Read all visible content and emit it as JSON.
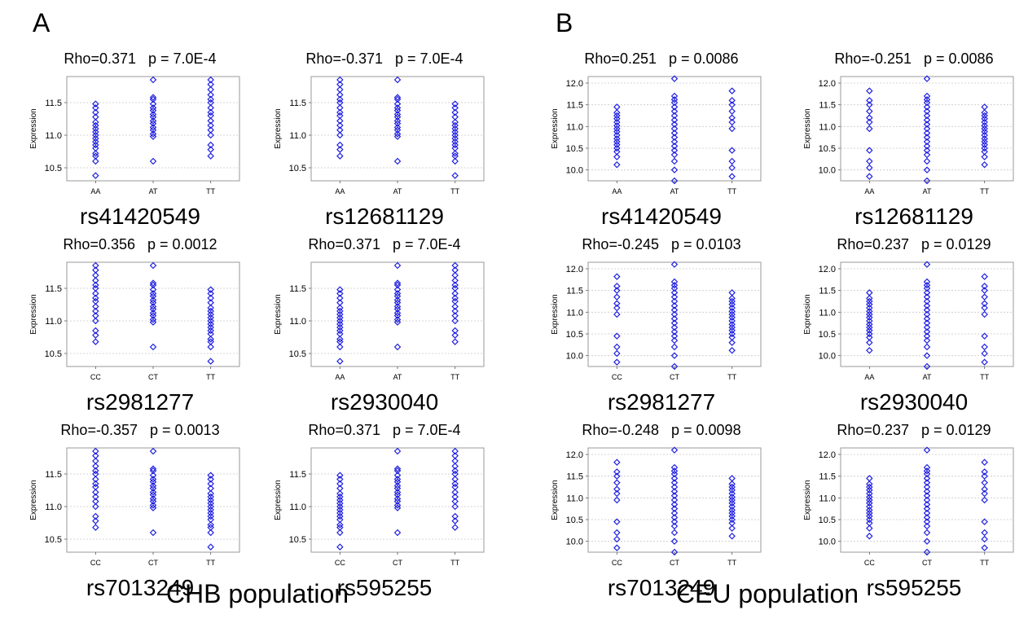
{
  "panels": [
    {
      "letter": "A",
      "population_label": "CHB population"
    },
    {
      "letter": "B",
      "population_label": "CEU population"
    }
  ],
  "colors": {
    "marker": "#2020e0",
    "grid": "#c8c8c8",
    "frame": "#9a9a9a"
  },
  "chart_data": [
    {
      "type": "scatter",
      "panel": "A",
      "title": "Rho=0.371   p = 7.0E-4",
      "snp": "rs41420549",
      "ylabel": "Expression",
      "categories": [
        "AA",
        "AT",
        "TT"
      ],
      "yticks": [
        10.5,
        11.0,
        11.5
      ],
      "ylim": [
        10.3,
        11.9
      ],
      "series": [
        {
          "category": "AA",
          "y": [
            10.38,
            10.6,
            10.68,
            10.72,
            10.8,
            10.85,
            10.9,
            10.95,
            11.0,
            11.05,
            11.1,
            11.15,
            11.2,
            11.28,
            11.35,
            11.42,
            11.48
          ]
        },
        {
          "category": "AT",
          "y": [
            10.6,
            10.98,
            11.02,
            11.08,
            11.12,
            11.18,
            11.22,
            11.28,
            11.32,
            11.38,
            11.42,
            11.48,
            11.55,
            11.58,
            11.85
          ]
        },
        {
          "category": "TT",
          "y": [
            10.68,
            10.78,
            10.85,
            11.0,
            11.08,
            11.15,
            11.22,
            11.3,
            11.35,
            11.42,
            11.5,
            11.55,
            11.62,
            11.7,
            11.78,
            11.85
          ]
        }
      ]
    },
    {
      "type": "scatter",
      "panel": "A",
      "title": "Rho=-0.371   p = 7.0E-4",
      "snp": "rs12681129",
      "ylabel": "Expression",
      "categories": [
        "AA",
        "AT",
        "TT"
      ],
      "yticks": [
        10.5,
        11.0,
        11.5
      ],
      "ylim": [
        10.3,
        11.9
      ],
      "series": [
        {
          "category": "AA",
          "y": [
            10.68,
            10.78,
            10.85,
            11.0,
            11.08,
            11.15,
            11.22,
            11.3,
            11.35,
            11.42,
            11.5,
            11.55,
            11.62,
            11.7,
            11.78,
            11.85
          ]
        },
        {
          "category": "AT",
          "y": [
            10.6,
            10.98,
            11.02,
            11.08,
            11.12,
            11.18,
            11.22,
            11.28,
            11.32,
            11.38,
            11.42,
            11.48,
            11.55,
            11.58,
            11.85
          ]
        },
        {
          "category": "TT",
          "y": [
            10.38,
            10.6,
            10.68,
            10.72,
            10.8,
            10.85,
            10.9,
            10.95,
            11.0,
            11.05,
            11.1,
            11.15,
            11.2,
            11.28,
            11.35,
            11.42,
            11.48
          ]
        }
      ]
    },
    {
      "type": "scatter",
      "panel": "B",
      "title": "Rho=0.251   p = 0.0086",
      "snp": "rs41420549",
      "ylabel": "Expression",
      "categories": [
        "AA",
        "AT",
        "TT"
      ],
      "yticks": [
        10.0,
        10.5,
        11.0,
        11.5,
        12.0
      ],
      "ylim": [
        9.75,
        12.15
      ],
      "series": [
        {
          "category": "AA",
          "y": [
            10.12,
            10.3,
            10.42,
            10.5,
            10.58,
            10.65,
            10.72,
            10.8,
            10.88,
            10.95,
            11.02,
            11.1,
            11.18,
            11.25,
            11.32,
            11.45
          ]
        },
        {
          "category": "AT",
          "y": [
            9.75,
            10.0,
            10.2,
            10.35,
            10.45,
            10.55,
            10.65,
            10.75,
            10.85,
            10.95,
            11.05,
            11.15,
            11.25,
            11.35,
            11.45,
            11.55,
            11.62,
            11.7,
            12.1
          ]
        },
        {
          "category": "TT",
          "y": [
            9.85,
            10.05,
            10.2,
            10.45,
            10.95,
            11.1,
            11.2,
            11.35,
            11.5,
            11.6,
            11.82
          ]
        }
      ]
    },
    {
      "type": "scatter",
      "panel": "B",
      "title": "Rho=-0.251   p = 0.0086",
      "snp": "rs12681129",
      "ylabel": "Expression",
      "categories": [
        "AA",
        "AT",
        "TT"
      ],
      "yticks": [
        10.0,
        10.5,
        11.0,
        11.5,
        12.0
      ],
      "ylim": [
        9.75,
        12.15
      ],
      "series": [
        {
          "category": "AA",
          "y": [
            9.85,
            10.05,
            10.2,
            10.45,
            10.95,
            11.1,
            11.2,
            11.35,
            11.5,
            11.6,
            11.82
          ]
        },
        {
          "category": "AT",
          "y": [
            9.75,
            10.0,
            10.2,
            10.35,
            10.45,
            10.55,
            10.65,
            10.75,
            10.85,
            10.95,
            11.05,
            11.15,
            11.25,
            11.35,
            11.45,
            11.55,
            11.62,
            11.7,
            12.1
          ]
        },
        {
          "category": "TT",
          "y": [
            10.12,
            10.3,
            10.42,
            10.5,
            10.58,
            10.65,
            10.72,
            10.8,
            10.88,
            10.95,
            11.02,
            11.1,
            11.18,
            11.25,
            11.32,
            11.45
          ]
        }
      ]
    },
    {
      "type": "scatter",
      "panel": "A",
      "title": "Rho=0.356   p = 0.0012",
      "snp": "rs2981277",
      "ylabel": "Expression",
      "categories": [
        "CC",
        "CT",
        "TT"
      ],
      "yticks": [
        10.5,
        11.0,
        11.5
      ],
      "ylim": [
        10.3,
        11.9
      ],
      "series": [
        {
          "category": "CC",
          "y": [
            10.68,
            10.78,
            10.85,
            11.0,
            11.08,
            11.15,
            11.22,
            11.3,
            11.35,
            11.42,
            11.5,
            11.55,
            11.62,
            11.7,
            11.78,
            11.85
          ]
        },
        {
          "category": "CT",
          "y": [
            10.6,
            10.98,
            11.02,
            11.08,
            11.12,
            11.18,
            11.22,
            11.28,
            11.32,
            11.38,
            11.42,
            11.48,
            11.55,
            11.58,
            11.85
          ]
        },
        {
          "category": "TT",
          "y": [
            10.38,
            10.6,
            10.68,
            10.72,
            10.8,
            10.85,
            10.9,
            10.95,
            11.0,
            11.05,
            11.1,
            11.15,
            11.2,
            11.28,
            11.35,
            11.42,
            11.48
          ]
        }
      ]
    },
    {
      "type": "scatter",
      "panel": "A",
      "title": "Rho=0.371   p = 7.0E-4",
      "snp": "rs2930040",
      "ylabel": "Expression",
      "categories": [
        "AA",
        "AT",
        "TT"
      ],
      "yticks": [
        10.5,
        11.0,
        11.5
      ],
      "ylim": [
        10.3,
        11.9
      ],
      "series": [
        {
          "category": "AA",
          "y": [
            10.38,
            10.6,
            10.68,
            10.72,
            10.8,
            10.85,
            10.9,
            10.95,
            11.0,
            11.05,
            11.1,
            11.15,
            11.2,
            11.28,
            11.35,
            11.42,
            11.48
          ]
        },
        {
          "category": "AT",
          "y": [
            10.6,
            10.98,
            11.02,
            11.08,
            11.12,
            11.18,
            11.22,
            11.28,
            11.32,
            11.38,
            11.42,
            11.48,
            11.55,
            11.58,
            11.85
          ]
        },
        {
          "category": "TT",
          "y": [
            10.68,
            10.78,
            10.85,
            11.0,
            11.08,
            11.15,
            11.22,
            11.3,
            11.35,
            11.42,
            11.5,
            11.55,
            11.62,
            11.7,
            11.78,
            11.85
          ]
        }
      ]
    },
    {
      "type": "scatter",
      "panel": "B",
      "title": "Rho=-0.245   p = 0.0103",
      "snp": "rs2981277",
      "ylabel": "Expression",
      "categories": [
        "CC",
        "CT",
        "TT"
      ],
      "yticks": [
        10.0,
        10.5,
        11.0,
        11.5,
        12.0
      ],
      "ylim": [
        9.75,
        12.15
      ],
      "series": [
        {
          "category": "CC",
          "y": [
            9.85,
            10.05,
            10.2,
            10.45,
            10.95,
            11.1,
            11.2,
            11.35,
            11.5,
            11.6,
            11.82
          ]
        },
        {
          "category": "CT",
          "y": [
            9.75,
            10.0,
            10.2,
            10.35,
            10.45,
            10.55,
            10.65,
            10.75,
            10.85,
            10.95,
            11.05,
            11.15,
            11.25,
            11.35,
            11.45,
            11.55,
            11.62,
            11.7,
            12.1
          ]
        },
        {
          "category": "TT",
          "y": [
            10.12,
            10.3,
            10.42,
            10.5,
            10.58,
            10.65,
            10.72,
            10.8,
            10.88,
            10.95,
            11.02,
            11.1,
            11.18,
            11.25,
            11.32,
            11.45
          ]
        }
      ]
    },
    {
      "type": "scatter",
      "panel": "B",
      "title": "Rho=0.237   p = 0.0129",
      "snp": "rs2930040",
      "ylabel": "Expression",
      "categories": [
        "AA",
        "AT",
        "TT"
      ],
      "yticks": [
        10.0,
        10.5,
        11.0,
        11.5,
        12.0
      ],
      "ylim": [
        9.75,
        12.15
      ],
      "series": [
        {
          "category": "AA",
          "y": [
            10.12,
            10.3,
            10.42,
            10.5,
            10.58,
            10.65,
            10.72,
            10.8,
            10.88,
            10.95,
            11.02,
            11.1,
            11.18,
            11.25,
            11.32,
            11.45
          ]
        },
        {
          "category": "AT",
          "y": [
            9.75,
            10.0,
            10.2,
            10.35,
            10.45,
            10.55,
            10.65,
            10.75,
            10.85,
            10.95,
            11.05,
            11.15,
            11.25,
            11.35,
            11.45,
            11.55,
            11.62,
            11.7,
            12.1
          ]
        },
        {
          "category": "TT",
          "y": [
            9.85,
            10.05,
            10.2,
            10.45,
            10.95,
            11.1,
            11.2,
            11.35,
            11.5,
            11.6,
            11.82
          ]
        }
      ]
    },
    {
      "type": "scatter",
      "panel": "A",
      "title": "Rho=-0.357   p = 0.0013",
      "snp": "rs7013249",
      "ylabel": "Expression",
      "categories": [
        "CC",
        "CT",
        "TT"
      ],
      "yticks": [
        10.5,
        11.0,
        11.5
      ],
      "ylim": [
        10.3,
        11.9
      ],
      "series": [
        {
          "category": "CC",
          "y": [
            10.68,
            10.78,
            10.85,
            11.0,
            11.08,
            11.15,
            11.22,
            11.3,
            11.35,
            11.42,
            11.5,
            11.55,
            11.62,
            11.7,
            11.78,
            11.85
          ]
        },
        {
          "category": "CT",
          "y": [
            10.6,
            10.98,
            11.02,
            11.08,
            11.12,
            11.18,
            11.22,
            11.28,
            11.32,
            11.38,
            11.42,
            11.48,
            11.55,
            11.58,
            11.85
          ]
        },
        {
          "category": "TT",
          "y": [
            10.38,
            10.6,
            10.68,
            10.72,
            10.8,
            10.85,
            10.9,
            10.95,
            11.0,
            11.05,
            11.1,
            11.15,
            11.2,
            11.28,
            11.35,
            11.42,
            11.48
          ]
        }
      ]
    },
    {
      "type": "scatter",
      "panel": "A",
      "title": "Rho=0.371   p = 7.0E-4",
      "snp": "rs595255",
      "ylabel": "Expression",
      "categories": [
        "CC",
        "CT",
        "TT"
      ],
      "yticks": [
        10.5,
        11.0,
        11.5
      ],
      "ylim": [
        10.3,
        11.9
      ],
      "series": [
        {
          "category": "CC",
          "y": [
            10.38,
            10.6,
            10.68,
            10.72,
            10.8,
            10.85,
            10.9,
            10.95,
            11.0,
            11.05,
            11.1,
            11.15,
            11.2,
            11.28,
            11.35,
            11.42,
            11.48
          ]
        },
        {
          "category": "CT",
          "y": [
            10.6,
            10.98,
            11.02,
            11.08,
            11.12,
            11.18,
            11.22,
            11.28,
            11.32,
            11.38,
            11.42,
            11.48,
            11.55,
            11.58,
            11.85
          ]
        },
        {
          "category": "TT",
          "y": [
            10.68,
            10.78,
            10.85,
            11.0,
            11.08,
            11.15,
            11.22,
            11.3,
            11.35,
            11.42,
            11.5,
            11.55,
            11.62,
            11.7,
            11.78,
            11.85
          ]
        }
      ]
    },
    {
      "type": "scatter",
      "panel": "B",
      "title": "Rho=-0.248   p = 0.0098",
      "snp": "rs7013249",
      "ylabel": "Expression",
      "categories": [
        "CC",
        "CT",
        "TT"
      ],
      "yticks": [
        10.0,
        10.5,
        11.0,
        11.5,
        12.0
      ],
      "ylim": [
        9.75,
        12.15
      ],
      "series": [
        {
          "category": "CC",
          "y": [
            9.85,
            10.05,
            10.2,
            10.45,
            10.95,
            11.1,
            11.2,
            11.35,
            11.5,
            11.6,
            11.82
          ]
        },
        {
          "category": "CT",
          "y": [
            9.75,
            10.0,
            10.2,
            10.35,
            10.45,
            10.55,
            10.65,
            10.75,
            10.85,
            10.95,
            11.05,
            11.15,
            11.25,
            11.35,
            11.45,
            11.55,
            11.62,
            11.7,
            12.1
          ]
        },
        {
          "category": "TT",
          "y": [
            10.12,
            10.3,
            10.42,
            10.5,
            10.58,
            10.65,
            10.72,
            10.8,
            10.88,
            10.95,
            11.02,
            11.1,
            11.18,
            11.25,
            11.32,
            11.45
          ]
        }
      ]
    },
    {
      "type": "scatter",
      "panel": "B",
      "title": "Rho=0.237   p = 0.0129",
      "snp": "rs595255",
      "ylabel": "Expression",
      "categories": [
        "CC",
        "CT",
        "TT"
      ],
      "yticks": [
        10.0,
        10.5,
        11.0,
        11.5,
        12.0
      ],
      "ylim": [
        9.75,
        12.15
      ],
      "series": [
        {
          "category": "CC",
          "y": [
            10.12,
            10.3,
            10.42,
            10.5,
            10.58,
            10.65,
            10.72,
            10.8,
            10.88,
            10.95,
            11.02,
            11.1,
            11.18,
            11.25,
            11.32,
            11.45
          ]
        },
        {
          "category": "CT",
          "y": [
            9.75,
            10.0,
            10.2,
            10.35,
            10.45,
            10.55,
            10.65,
            10.75,
            10.85,
            10.95,
            11.05,
            11.15,
            11.25,
            11.35,
            11.45,
            11.55,
            11.62,
            11.7,
            12.1
          ]
        },
        {
          "category": "TT",
          "y": [
            9.85,
            10.05,
            10.2,
            10.45,
            10.95,
            11.1,
            11.2,
            11.35,
            11.5,
            11.6,
            11.82
          ]
        }
      ]
    }
  ]
}
